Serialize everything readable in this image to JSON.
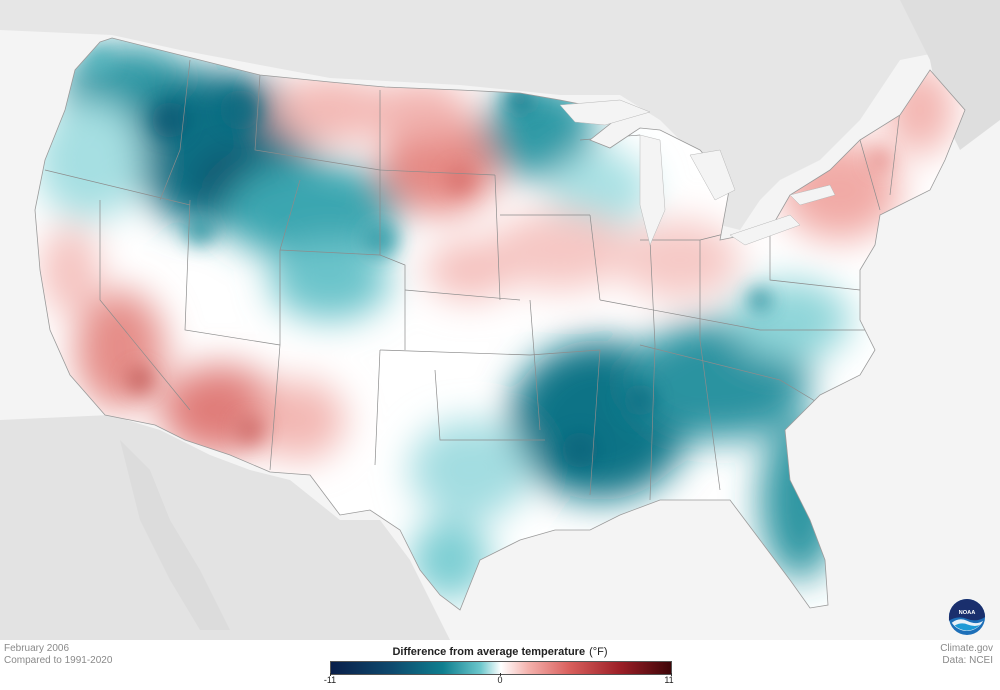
{
  "map": {
    "subject": "Difference from average temperature",
    "region": "Contiguous United States"
  },
  "footer": {
    "date": "February 2006",
    "baseline": "Compared to 1991-2020",
    "credit": "Climate.gov",
    "source": "Data: NCEI"
  },
  "legend": {
    "title": "Difference from average temperature",
    "unit": "(°F)",
    "min_label": "-11",
    "mid_label": "0",
    "max_label": "11",
    "colors": {
      "cold": "#0a1f4a",
      "cool": "#0f7f8f",
      "neutral": "#ffffff",
      "warm": "#d9605d",
      "hot": "#3e0508"
    }
  },
  "logo": {
    "name": "NOAA",
    "text": "NOAA"
  }
}
